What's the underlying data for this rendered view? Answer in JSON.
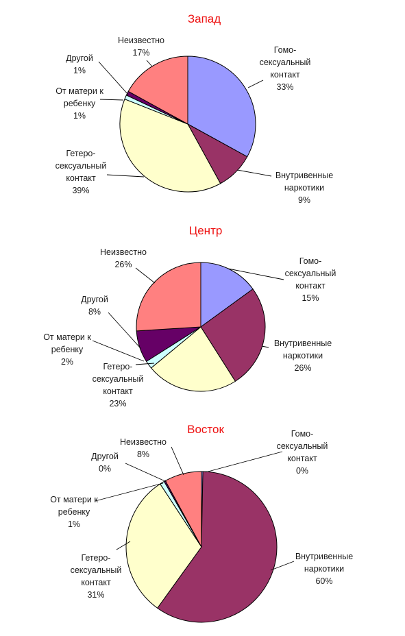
{
  "chart_data": [
    {
      "type": "pie",
      "title": "Запад",
      "slices": [
        {
          "label": [
            "Гомо-",
            "сексуальный",
            "контакт"
          ],
          "value": 33,
          "percent": "33%",
          "color": "#9999ff"
        },
        {
          "label": [
            "Внутривенные",
            "наркотики"
          ],
          "value": 9,
          "percent": "9%",
          "color": "#993366"
        },
        {
          "label": [
            "Гетеро-",
            "сексуальный",
            "контакт"
          ],
          "value": 39,
          "percent": "39%",
          "color": "#ffffcc"
        },
        {
          "label": [
            "От матери к",
            "ребенку"
          ],
          "value": 1,
          "percent": "1%",
          "color": "#ccffff"
        },
        {
          "label": [
            "Другой"
          ],
          "value": 1,
          "percent": "1%",
          "color": "#660066"
        },
        {
          "label": [
            "Неизвестно"
          ],
          "value": 17,
          "percent": "17%",
          "color": "#ff8080"
        }
      ]
    },
    {
      "type": "pie",
      "title": "Центр",
      "slices": [
        {
          "label": [
            "Гомо-",
            "сексуальный",
            "контакт"
          ],
          "value": 15,
          "percent": "15%",
          "color": "#9999ff"
        },
        {
          "label": [
            "Внутривенные",
            "наркотики"
          ],
          "value": 26,
          "percent": "26%",
          "color": "#993366"
        },
        {
          "label": [
            "Гетеро-",
            "сексуальный",
            "контакт"
          ],
          "value": 23,
          "percent": "23%",
          "color": "#ffffcc"
        },
        {
          "label": [
            "От матери к",
            "ребенку"
          ],
          "value": 2,
          "percent": "2%",
          "color": "#ccffff"
        },
        {
          "label": [
            "Другой"
          ],
          "value": 8,
          "percent": "8%",
          "color": "#660066"
        },
        {
          "label": [
            "Неизвестно"
          ],
          "value": 26,
          "percent": "26%",
          "color": "#ff8080"
        }
      ]
    },
    {
      "type": "pie",
      "title": "Восток",
      "slices": [
        {
          "label": [
            "Гомо-",
            "сексуальный",
            "контакт"
          ],
          "value": 0.3,
          "percent": "0%",
          "color": "#9999ff"
        },
        {
          "label": [
            "Внутривенные",
            "наркотики"
          ],
          "value": 60,
          "percent": "60%",
          "color": "#993366"
        },
        {
          "label": [
            "Гетеро-",
            "сексуальный",
            "контакт"
          ],
          "value": 31,
          "percent": "31%",
          "color": "#ffffcc"
        },
        {
          "label": [
            "От матери к",
            "ребенку"
          ],
          "value": 1,
          "percent": "1%",
          "color": "#ccffff"
        },
        {
          "label": [
            "Другой"
          ],
          "value": 0.3,
          "percent": "0%",
          "color": "#660066"
        },
        {
          "label": [
            "Неизвестно"
          ],
          "value": 8,
          "percent": "8%",
          "color": "#ff8080"
        }
      ]
    }
  ]
}
